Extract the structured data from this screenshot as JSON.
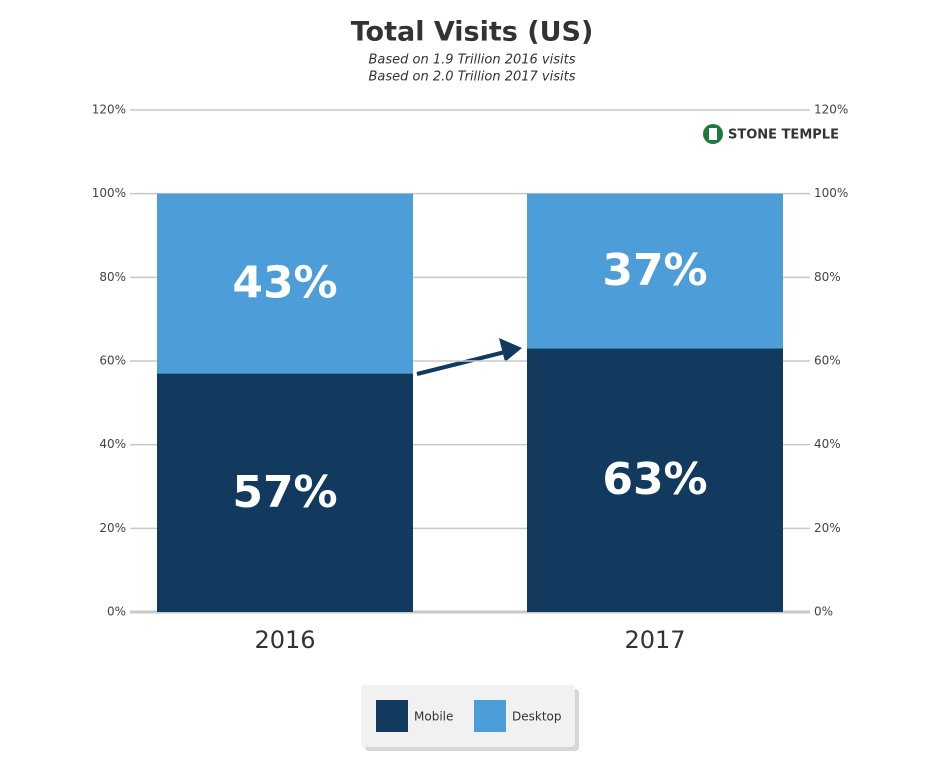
{
  "chart_data": {
    "type": "stacked_bar",
    "title": "Total Visits (US)",
    "subtitle": [
      "Based on 1.9 Trillion 2016 visits",
      "Based on 2.0 Trillion 2017 visits"
    ],
    "watermark": "STONE TEMPLE",
    "categories": [
      "2016",
      "2017"
    ],
    "series": [
      {
        "name": "Mobile",
        "color": "#123a5e",
        "values": [
          57,
          63
        ],
        "value_labels": [
          "57%",
          "63%"
        ]
      },
      {
        "name": "Desktop",
        "color": "#4d9dd8",
        "values": [
          43,
          37
        ],
        "value_labels": [
          "43%",
          "37%"
        ]
      }
    ],
    "ylim": [
      0,
      120
    ],
    "yticks": [
      {
        "value": 0,
        "label": "0%"
      },
      {
        "value": 20,
        "label": "20%"
      },
      {
        "value": 40,
        "label": "40%"
      },
      {
        "value": 60,
        "label": "60%"
      },
      {
        "value": 80,
        "label": "80%"
      },
      {
        "value": 100,
        "label": "100%"
      },
      {
        "value": 120,
        "label": "120%"
      }
    ],
    "y2lim": [
      0,
      120
    ],
    "y2ticks": [
      {
        "value": 0,
        "label": "0%"
      },
      {
        "value": 20,
        "label": "20%"
      },
      {
        "value": 40,
        "label": "40%"
      },
      {
        "value": 60,
        "label": "60%"
      },
      {
        "value": 80,
        "label": "80%"
      },
      {
        "value": 100,
        "label": "100%"
      },
      {
        "value": 120,
        "label": "120%"
      }
    ],
    "grid": true
  }
}
